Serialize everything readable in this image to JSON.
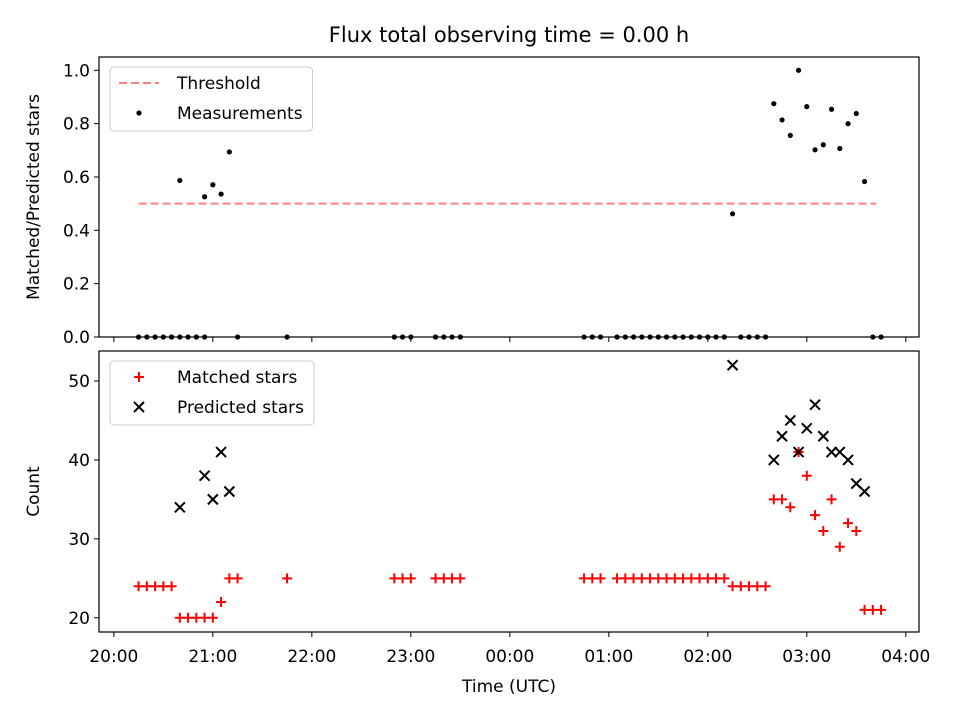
{
  "title": "Flux total observing time = 0.00 h",
  "chart_data": [
    {
      "type": "scatter",
      "ylabel": "Matched/Predicted stars",
      "xlabel": "",
      "xlim": [
        "19:51",
        "04:08"
      ],
      "ylim": [
        0,
        1.05
      ],
      "yticks": [
        "0.0",
        "0.2",
        "0.4",
        "0.6",
        "0.8",
        "1.0"
      ],
      "legend_position": "top-left",
      "threshold": {
        "name": "Threshold",
        "value": 0.5,
        "x_range": [
          "20:15",
          "03:42"
        ],
        "color": "#ff7f7f",
        "style": "dashed"
      },
      "series": [
        {
          "name": "Measurements",
          "color": "#000000",
          "marker": "dot",
          "points": [
            [
              "20:15",
              0
            ],
            [
              "20:20",
              0
            ],
            [
              "20:25",
              0
            ],
            [
              "20:30",
              0
            ],
            [
              "20:35",
              0
            ],
            [
              "20:40",
              0
            ],
            [
              "20:45",
              0
            ],
            [
              "20:50",
              0
            ],
            [
              "20:55",
              0
            ],
            [
              "21:15",
              0
            ],
            [
              "21:45",
              0
            ],
            [
              "22:50",
              0
            ],
            [
              "22:55",
              0
            ],
            [
              "23:00",
              0
            ],
            [
              "23:15",
              0
            ],
            [
              "23:20",
              0
            ],
            [
              "23:25",
              0
            ],
            [
              "23:30",
              0
            ],
            [
              "00:45",
              0
            ],
            [
              "00:50",
              0
            ],
            [
              "00:55",
              0
            ],
            [
              "01:05",
              0
            ],
            [
              "01:10",
              0
            ],
            [
              "01:15",
              0
            ],
            [
              "01:20",
              0
            ],
            [
              "01:25",
              0
            ],
            [
              "01:30",
              0
            ],
            [
              "01:35",
              0
            ],
            [
              "01:40",
              0
            ],
            [
              "01:45",
              0
            ],
            [
              "01:50",
              0
            ],
            [
              "01:55",
              0
            ],
            [
              "02:00",
              0
            ],
            [
              "02:05",
              0
            ],
            [
              "02:10",
              0
            ],
            [
              "02:20",
              0
            ],
            [
              "02:25",
              0
            ],
            [
              "02:30",
              0
            ],
            [
              "02:35",
              0
            ],
            [
              "03:40",
              0
            ],
            [
              "03:45",
              0
            ],
            [
              "20:40",
              0.587
            ],
            [
              "20:55",
              0.526
            ],
            [
              "21:00",
              0.571
            ],
            [
              "21:05",
              0.536
            ],
            [
              "21:10",
              0.694
            ],
            [
              "02:15",
              0.462
            ],
            [
              "02:40",
              0.875
            ],
            [
              "02:45",
              0.814
            ],
            [
              "02:50",
              0.756
            ],
            [
              "02:55",
              1.0
            ],
            [
              "03:00",
              0.864
            ],
            [
              "03:05",
              0.702
            ],
            [
              "03:10",
              0.721
            ],
            [
              "03:15",
              0.854
            ],
            [
              "03:20",
              0.707
            ],
            [
              "03:25",
              0.8
            ],
            [
              "03:30",
              0.838
            ],
            [
              "03:35",
              0.583
            ]
          ]
        }
      ]
    },
    {
      "type": "scatter",
      "ylabel": "Count",
      "xlabel": "Time (UTC)",
      "xlim": [
        "19:51",
        "04:08"
      ],
      "ylim": [
        18.2,
        53.8
      ],
      "yticks": [
        "20",
        "30",
        "40",
        "50"
      ],
      "xticks": [
        "20:00",
        "21:00",
        "22:00",
        "23:00",
        "00:00",
        "01:00",
        "02:00",
        "03:00",
        "04:00"
      ],
      "legend_position": "top-left",
      "series": [
        {
          "name": "Matched stars",
          "color": "#ff0000",
          "marker": "plus",
          "points": [
            [
              "20:15",
              24
            ],
            [
              "20:20",
              24
            ],
            [
              "20:25",
              24
            ],
            [
              "20:30",
              24
            ],
            [
              "20:35",
              24
            ],
            [
              "20:40",
              20
            ],
            [
              "20:45",
              20
            ],
            [
              "20:50",
              20
            ],
            [
              "20:55",
              20
            ],
            [
              "21:00",
              20
            ],
            [
              "21:05",
              22
            ],
            [
              "21:10",
              25
            ],
            [
              "21:15",
              25
            ],
            [
              "21:45",
              25
            ],
            [
              "22:50",
              25
            ],
            [
              "22:55",
              25
            ],
            [
              "23:00",
              25
            ],
            [
              "23:15",
              25
            ],
            [
              "23:20",
              25
            ],
            [
              "23:25",
              25
            ],
            [
              "23:30",
              25
            ],
            [
              "00:45",
              25
            ],
            [
              "00:50",
              25
            ],
            [
              "00:55",
              25
            ],
            [
              "01:05",
              25
            ],
            [
              "01:10",
              25
            ],
            [
              "01:15",
              25
            ],
            [
              "01:20",
              25
            ],
            [
              "01:25",
              25
            ],
            [
              "01:30",
              25
            ],
            [
              "01:35",
              25
            ],
            [
              "01:40",
              25
            ],
            [
              "01:45",
              25
            ],
            [
              "01:50",
              25
            ],
            [
              "01:55",
              25
            ],
            [
              "02:00",
              25
            ],
            [
              "02:05",
              25
            ],
            [
              "02:10",
              25
            ],
            [
              "02:15",
              24
            ],
            [
              "02:20",
              24
            ],
            [
              "02:25",
              24
            ],
            [
              "02:30",
              24
            ],
            [
              "02:35",
              24
            ],
            [
              "02:40",
              35
            ],
            [
              "02:45",
              35
            ],
            [
              "02:50",
              34
            ],
            [
              "02:55",
              41
            ],
            [
              "03:00",
              38
            ],
            [
              "03:05",
              33
            ],
            [
              "03:10",
              31
            ],
            [
              "03:15",
              35
            ],
            [
              "03:20",
              29
            ],
            [
              "03:25",
              32
            ],
            [
              "03:30",
              31
            ],
            [
              "03:35",
              21
            ],
            [
              "03:40",
              21
            ],
            [
              "03:45",
              21
            ]
          ]
        },
        {
          "name": "Predicted stars",
          "color": "#000000",
          "marker": "x",
          "points": [
            [
              "20:40",
              34
            ],
            [
              "20:55",
              38
            ],
            [
              "21:00",
              35
            ],
            [
              "21:05",
              41
            ],
            [
              "21:10",
              36
            ],
            [
              "02:15",
              52
            ],
            [
              "02:40",
              40
            ],
            [
              "02:45",
              43
            ],
            [
              "02:50",
              45
            ],
            [
              "02:55",
              41
            ],
            [
              "03:00",
              44
            ],
            [
              "03:05",
              47
            ],
            [
              "03:10",
              43
            ],
            [
              "03:15",
              41
            ],
            [
              "03:20",
              41
            ],
            [
              "03:25",
              40
            ],
            [
              "03:30",
              37
            ],
            [
              "03:35",
              36
            ]
          ]
        }
      ]
    }
  ]
}
